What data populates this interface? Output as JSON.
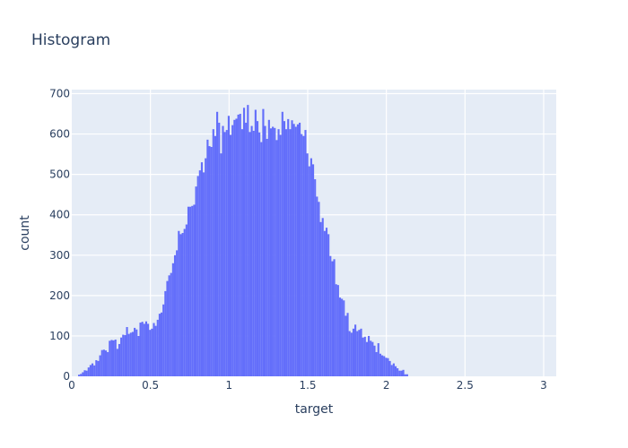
{
  "chart_data": {
    "type": "bar",
    "title": "Histogram",
    "xlabel": "target",
    "ylabel": "count",
    "xlim": [
      0,
      3.08
    ],
    "ylim": [
      0,
      710
    ],
    "x_ticks": [
      0,
      0.5,
      1,
      1.5,
      2,
      2.5,
      3
    ],
    "x_tick_labels": [
      "0",
      "0.5",
      "1",
      "1.5",
      "2",
      "2.5",
      "3"
    ],
    "y_ticks": [
      0,
      100,
      200,
      300,
      400,
      500,
      600,
      700
    ],
    "y_tick_labels": [
      "0",
      "100",
      "200",
      "300",
      "400",
      "500",
      "600",
      "700"
    ],
    "grid": true,
    "bin_start": 0.04,
    "bin_width": 0.0122,
    "bar_color": "#636efa",
    "plot_bg": "#e5ecf6",
    "counts": [
      4,
      6,
      10,
      15,
      14,
      22,
      28,
      32,
      27,
      40,
      38,
      52,
      65,
      66,
      64,
      60,
      88,
      90,
      89,
      91,
      68,
      80,
      96,
      103,
      102,
      122,
      105,
      108,
      110,
      120,
      116,
      100,
      133,
      135,
      130,
      136,
      130,
      115,
      118,
      132,
      125,
      140,
      155,
      158,
      178,
      211,
      236,
      250,
      256,
      280,
      300,
      312,
      360,
      352,
      355,
      365,
      376,
      420,
      420,
      422,
      425,
      470,
      496,
      510,
      530,
      505,
      540,
      586,
      570,
      568,
      612,
      595,
      655,
      628,
      552,
      620,
      605,
      610,
      645,
      598,
      622,
      635,
      638,
      648,
      650,
      612,
      665,
      628,
      672,
      605,
      620,
      608,
      660,
      632,
      604,
      580,
      662,
      620,
      588,
      635,
      614,
      618,
      615,
      585,
      612,
      598,
      655,
      632,
      612,
      637,
      612,
      634,
      625,
      618,
      624,
      628,
      600,
      595,
      610,
      552,
      520,
      540,
      525,
      488,
      445,
      432,
      382,
      392,
      360,
      368,
      352,
      298,
      285,
      290,
      228,
      226,
      195,
      192,
      188,
      150,
      157,
      112,
      108,
      118,
      128,
      112,
      115,
      118,
      96,
      98,
      85,
      100,
      88,
      85,
      76,
      60,
      82,
      56,
      52,
      50,
      46,
      45,
      38,
      28,
      32,
      25,
      20,
      14,
      14,
      16,
      5,
      5
    ]
  }
}
